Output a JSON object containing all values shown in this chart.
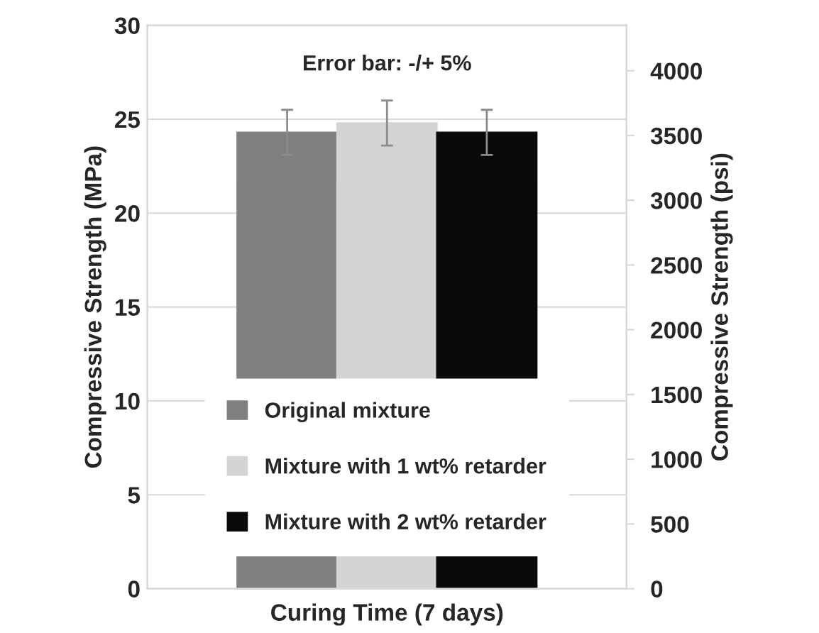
{
  "chart_data": {
    "type": "bar",
    "xlabel": "Curing Time (7 days)",
    "ylabel": "Compressive Strength (MPa)",
    "y2label": "Compressive Strength (psi)",
    "categories": [
      null
    ],
    "series": [
      {
        "name": "Original mixture",
        "color": "#7f7f7f",
        "values": [
          24.3
        ],
        "errors": [
          1.2
        ]
      },
      {
        "name": "Mixture with 1 wt% retarder",
        "color": "#d4d4d4",
        "values": [
          24.8
        ],
        "errors": [
          1.2
        ]
      },
      {
        "name": "Mixture with 2 wt% retarder",
        "color": "#0a0a0a",
        "values": [
          24.3
        ],
        "errors": [
          1.2
        ]
      }
    ],
    "ylim": [
      0,
      30
    ],
    "yticks": [
      0,
      5,
      10,
      15,
      20,
      25,
      30
    ],
    "y2lim": [
      0,
      4351
    ],
    "y2ticks": [
      0,
      500,
      1000,
      1500,
      2000,
      2500,
      3000,
      3500,
      4000
    ],
    "annotations": [
      "Error bar: -/+ 5%"
    ],
    "grid": "y",
    "legend": "bottom"
  }
}
